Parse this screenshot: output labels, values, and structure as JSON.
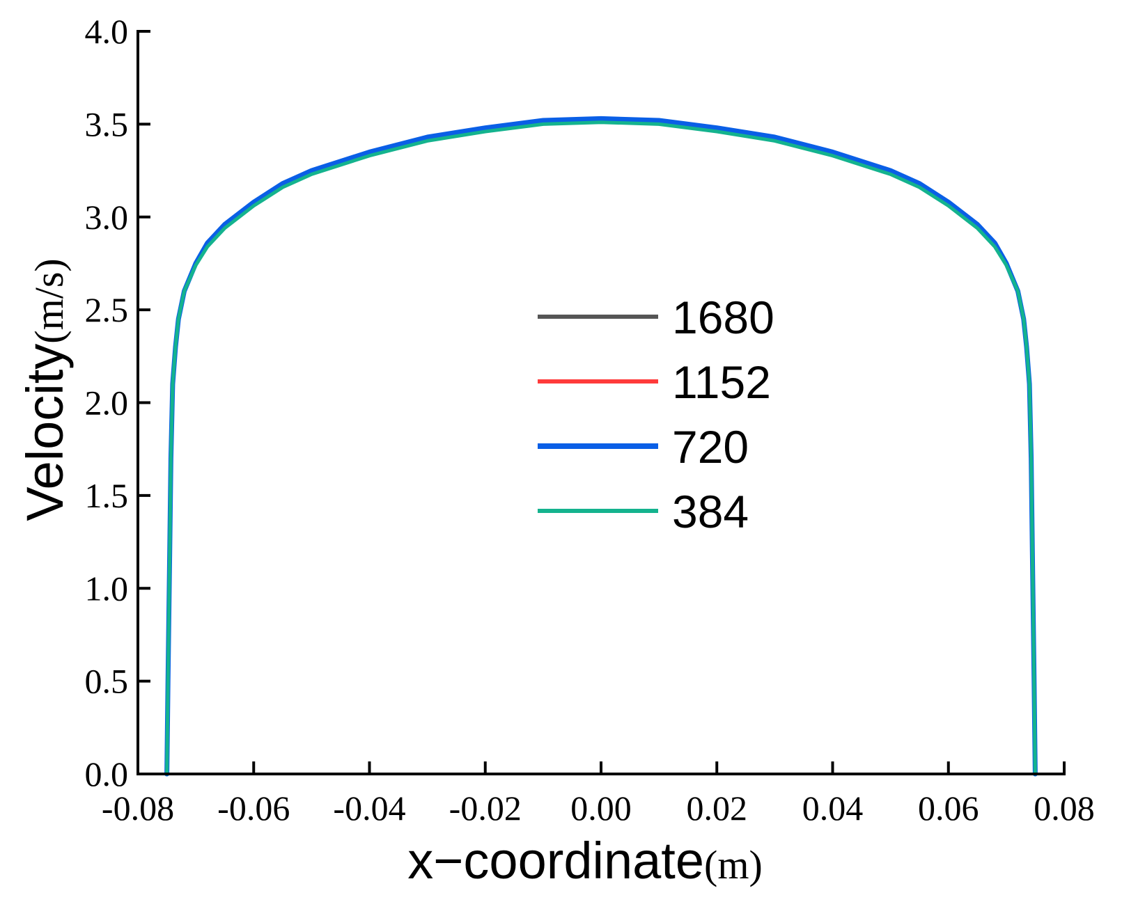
{
  "chart_data": {
    "type": "line",
    "xlabel_main": "x−coordinate",
    "xlabel_unit": "(m)",
    "ylabel_main": "Velocity",
    "ylabel_unit": "(m/s)",
    "xlim": [
      -0.08,
      0.08
    ],
    "ylim": [
      0.0,
      4.0
    ],
    "xticks": [
      -0.08,
      -0.06,
      -0.04,
      -0.02,
      0.0,
      0.02,
      0.04,
      0.06,
      0.08
    ],
    "xtick_labels": [
      "-0.08",
      "-0.06",
      "-0.04",
      "-0.02",
      "0.00",
      "0.02",
      "0.04",
      "0.06",
      "0.08"
    ],
    "yticks": [
      0.0,
      0.5,
      1.0,
      1.5,
      2.0,
      2.5,
      3.0,
      3.5,
      4.0
    ],
    "ytick_labels": [
      "0.0",
      "0.5",
      "1.0",
      "1.5",
      "2.0",
      "2.5",
      "3.0",
      "3.5",
      "4.0"
    ],
    "legend_position": "center",
    "x": [
      -0.075,
      -0.0748,
      -0.0745,
      -0.0743,
      -0.074,
      -0.0735,
      -0.073,
      -0.072,
      -0.07,
      -0.068,
      -0.065,
      -0.06,
      -0.055,
      -0.05,
      -0.04,
      -0.03,
      -0.02,
      -0.01,
      0.0,
      0.01,
      0.02,
      0.03,
      0.04,
      0.05,
      0.055,
      0.06,
      0.065,
      0.068,
      0.07,
      0.072,
      0.073,
      0.0735,
      0.074,
      0.0743,
      0.0745,
      0.0748,
      0.075
    ],
    "series": [
      {
        "name": "1680",
        "color": "#555555",
        "width": 5,
        "values": [
          0.0,
          0.5,
          1.2,
          1.7,
          2.1,
          2.3,
          2.45,
          2.6,
          2.75,
          2.85,
          2.95,
          3.07,
          3.17,
          3.24,
          3.34,
          3.42,
          3.47,
          3.51,
          3.52,
          3.51,
          3.47,
          3.42,
          3.34,
          3.24,
          3.17,
          3.07,
          2.95,
          2.85,
          2.75,
          2.6,
          2.45,
          2.3,
          2.1,
          1.7,
          1.2,
          0.5,
          0.0
        ]
      },
      {
        "name": "1152",
        "color": "#ff3b3b",
        "width": 5,
        "values": [
          0.0,
          0.5,
          1.2,
          1.7,
          2.1,
          2.3,
          2.45,
          2.6,
          2.75,
          2.85,
          2.95,
          3.07,
          3.17,
          3.24,
          3.34,
          3.42,
          3.47,
          3.51,
          3.52,
          3.51,
          3.47,
          3.42,
          3.34,
          3.24,
          3.17,
          3.07,
          2.95,
          2.85,
          2.75,
          2.6,
          2.45,
          2.3,
          2.1,
          1.7,
          1.2,
          0.5,
          0.0
        ]
      },
      {
        "name": "720",
        "color": "#0a5fe6",
        "width": 7,
        "values": [
          0.0,
          0.5,
          1.2,
          1.7,
          2.1,
          2.3,
          2.45,
          2.6,
          2.75,
          2.86,
          2.96,
          3.08,
          3.18,
          3.25,
          3.35,
          3.43,
          3.48,
          3.52,
          3.53,
          3.52,
          3.48,
          3.43,
          3.35,
          3.25,
          3.18,
          3.08,
          2.96,
          2.86,
          2.75,
          2.6,
          2.45,
          2.3,
          2.1,
          1.7,
          1.2,
          0.5,
          0.0
        ]
      },
      {
        "name": "384",
        "color": "#14b38e",
        "width": 5,
        "values": [
          0.0,
          0.5,
          1.2,
          1.7,
          2.1,
          2.3,
          2.45,
          2.6,
          2.74,
          2.84,
          2.94,
          3.06,
          3.16,
          3.23,
          3.33,
          3.41,
          3.46,
          3.5,
          3.51,
          3.5,
          3.46,
          3.41,
          3.33,
          3.23,
          3.16,
          3.06,
          2.94,
          2.84,
          2.74,
          2.6,
          2.45,
          2.3,
          2.1,
          1.7,
          1.2,
          0.5,
          0.0
        ]
      }
    ]
  }
}
